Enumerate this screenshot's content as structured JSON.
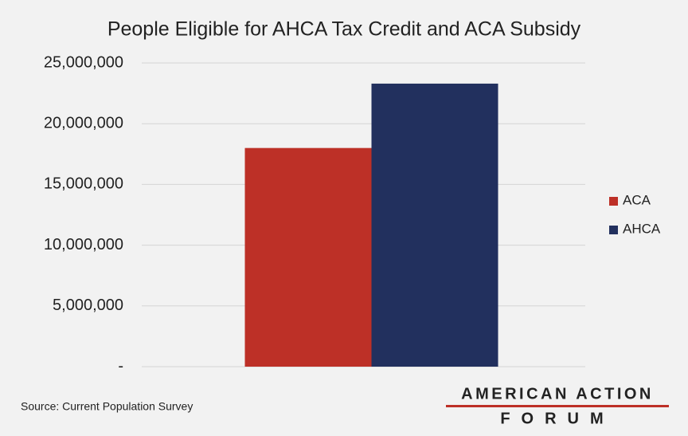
{
  "chart_data": {
    "type": "bar",
    "title": "People Eligible for AHCA Tax Credit and ACA Subsidy",
    "categories": [
      null
    ],
    "series": [
      {
        "name": "ACA",
        "color": "#bd3027",
        "values": [
          18000000
        ]
      },
      {
        "name": "AHCA",
        "color": "#22305e",
        "values": [
          23300000
        ]
      }
    ],
    "ylim": [
      0,
      25000000
    ],
    "yticks": [
      {
        "value": 0,
        "label": "-"
      },
      {
        "value": 5000000,
        "label": "5,000,000"
      },
      {
        "value": 10000000,
        "label": "10,000,000"
      },
      {
        "value": 15000000,
        "label": "15,000,000"
      },
      {
        "value": 20000000,
        "label": "20,000,000"
      },
      {
        "value": 25000000,
        "label": "25,000,000"
      }
    ],
    "grid": true,
    "legend": "right",
    "source": "Source:  Current Population Survey"
  },
  "logo": {
    "line1": "AMERICAN ACTION",
    "line2": "FORUM"
  }
}
